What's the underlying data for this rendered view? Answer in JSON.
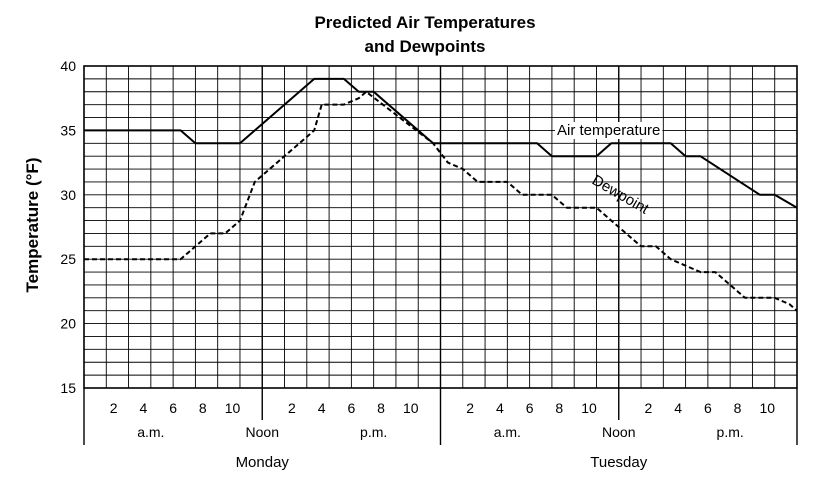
{
  "chart_data": {
    "type": "line",
    "title_line1": "Predicted Air Temperatures",
    "title_line2": "and Dewpoints",
    "ylabel": "Temperature (°F)",
    "ylim": [
      15,
      40
    ],
    "yticks": [
      15,
      20,
      25,
      30,
      35,
      40
    ],
    "xlim": [
      0,
      48
    ],
    "grid": true,
    "hour_tick_labels": [
      {
        "x": 2,
        "label": "2"
      },
      {
        "x": 4,
        "label": "4"
      },
      {
        "x": 6,
        "label": "6"
      },
      {
        "x": 8,
        "label": "8"
      },
      {
        "x": 10,
        "label": "10"
      },
      {
        "x": 14,
        "label": "2"
      },
      {
        "x": 16,
        "label": "4"
      },
      {
        "x": 18,
        "label": "6"
      },
      {
        "x": 20,
        "label": "8"
      },
      {
        "x": 22,
        "label": "10"
      },
      {
        "x": 26,
        "label": "2"
      },
      {
        "x": 28,
        "label": "4"
      },
      {
        "x": 30,
        "label": "6"
      },
      {
        "x": 32,
        "label": "8"
      },
      {
        "x": 34,
        "label": "10"
      },
      {
        "x": 38,
        "label": "2"
      },
      {
        "x": 40,
        "label": "4"
      },
      {
        "x": 42,
        "label": "6"
      },
      {
        "x": 44,
        "label": "8"
      },
      {
        "x": 46,
        "label": "10"
      }
    ],
    "period_labels": [
      {
        "x": 4.5,
        "label": "a.m."
      },
      {
        "x": 12,
        "label": "Noon"
      },
      {
        "x": 19.5,
        "label": "p.m."
      },
      {
        "x": 28.5,
        "label": "a.m."
      },
      {
        "x": 36,
        "label": "Noon"
      },
      {
        "x": 43.5,
        "label": "p.m."
      }
    ],
    "day_labels": [
      {
        "x": 12,
        "label": "Monday"
      },
      {
        "x": 36,
        "label": "Tuesday"
      }
    ],
    "series": [
      {
        "name": "Air temperature",
        "style": "solid",
        "x": [
          0,
          6.5,
          7.5,
          10.5,
          11.5,
          15.5,
          17.5,
          18.5,
          19.5,
          23.5,
          24.5,
          30.5,
          31.5,
          34.5,
          35.5,
          39.5,
          40.5,
          41.5,
          45.5,
          46.5,
          48
        ],
        "y": [
          35,
          35,
          34,
          34,
          35,
          39,
          39,
          38,
          38,
          34,
          34,
          34,
          33,
          33,
          34,
          34,
          33,
          33,
          30,
          30,
          29
        ]
      },
      {
        "name": "Dewpoint",
        "style": "dashed",
        "x": [
          0,
          6.5,
          8.5,
          9.5,
          10.5,
          11.5,
          12.5,
          15.5,
          16.0,
          17.5,
          18.5,
          19.0,
          23.5,
          24.5,
          25.5,
          26.5,
          28.5,
          29.5,
          31.5,
          32.5,
          34.5,
          35.5,
          37.5,
          38.5,
          39.5,
          41.5,
          42.5,
          43.5,
          44.5,
          45.5,
          46.5,
          47.5,
          48
        ],
        "y": [
          25,
          25,
          27,
          27,
          28,
          31,
          32,
          35,
          37,
          37,
          37.5,
          38,
          34,
          32.5,
          32,
          31,
          31,
          30,
          30,
          29,
          29,
          28,
          26,
          26,
          25,
          24,
          24,
          23,
          22,
          22,
          22,
          21.5,
          21
        ]
      }
    ]
  }
}
